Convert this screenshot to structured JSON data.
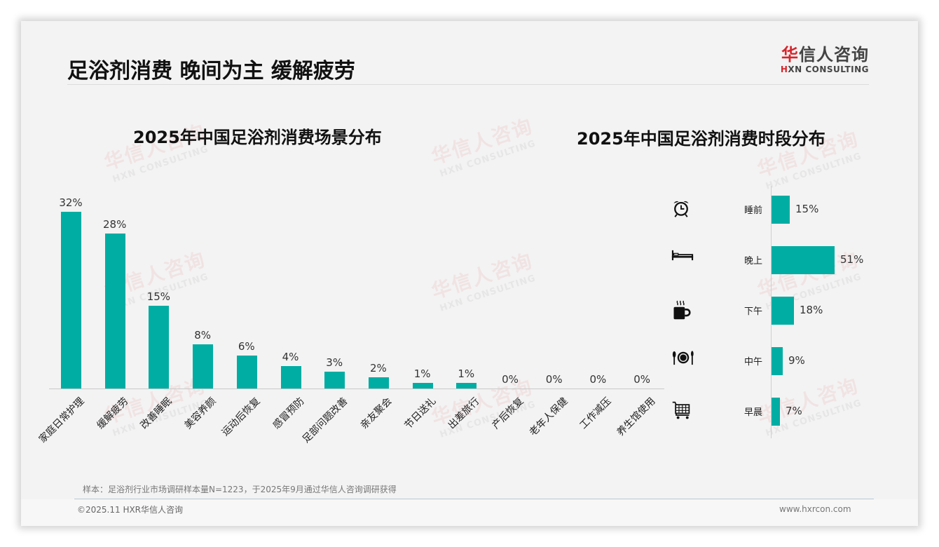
{
  "header": {
    "title": "足浴剂消费 晚间为主 缓解疲劳",
    "logo_cn_red": "华",
    "logo_cn_rest": "信人咨询",
    "logo_en_red": "H",
    "logo_en_rest": "XN CONSULTING"
  },
  "watermark": {
    "cn": "华信人咨询",
    "en": "HXN CONSULTING"
  },
  "colors": {
    "bar": "#00ada3",
    "brand_red": "#d6252b"
  },
  "chart_data": [
    {
      "type": "bar",
      "title": "2025年中国足浴剂消费场景分布",
      "xlabel": "",
      "ylabel": "",
      "ylim": [
        0,
        32
      ],
      "grid": false,
      "legend": "none",
      "categories": [
        "家庭日常护理",
        "缓解疲劳",
        "改善睡眠",
        "美容养颜",
        "运动后恢复",
        "感冒预防",
        "足部问题改善",
        "亲友聚会",
        "节日送礼",
        "出差旅行",
        "产后恢复",
        "老年人保健",
        "工作减压",
        "养生馆使用"
      ],
      "values": [
        32,
        28,
        15,
        8,
        6,
        4,
        3,
        2,
        1,
        1,
        0,
        0,
        0,
        0
      ],
      "labels": [
        "32%",
        "28%",
        "15%",
        "8%",
        "6%",
        "4%",
        "3%",
        "2%",
        "1%",
        "1%",
        "0%",
        "0%",
        "0%",
        "0%"
      ]
    },
    {
      "type": "bar",
      "orientation": "horizontal",
      "title": "2025年中国足浴剂消费时段分布",
      "xlabel": "",
      "ylabel": "",
      "xlim": [
        0,
        51
      ],
      "grid": false,
      "legend": "none",
      "categories": [
        "睡前",
        "晚上",
        "下午",
        "中午",
        "早晨"
      ],
      "values": [
        15,
        51,
        18,
        9,
        7
      ],
      "labels": [
        "15%",
        "51%",
        "18%",
        "9%",
        "7%"
      ],
      "icons": [
        "alarm-clock-icon",
        "bed-icon",
        "hot-coffee-mug-icon",
        "plate-cutlery-icon",
        "shopping-cart-icon"
      ]
    }
  ],
  "footer": {
    "source": "样本：足浴剂行业市场调研样本量N=1223，于2025年9月通过华信人咨询调研获得",
    "copyright": "©2025.11 HXR华信人咨询",
    "website": "www.hxrcon.com"
  }
}
